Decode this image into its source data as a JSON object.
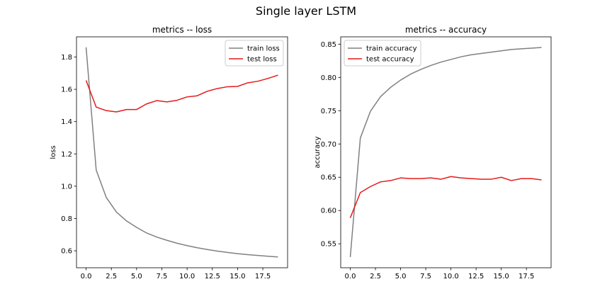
{
  "figure": {
    "title": "Single layer LSTM",
    "colors": {
      "train": "#808080",
      "test": "#e41a1c"
    }
  },
  "chart_data": [
    {
      "type": "line",
      "title": "metrics -- loss",
      "xlabel": "",
      "ylabel": "loss",
      "xlim": [
        -0.95,
        19.95
      ],
      "ylim": [
        0.495,
        1.925
      ],
      "xticks": [
        0.0,
        2.5,
        5.0,
        7.5,
        10.0,
        12.5,
        15.0,
        17.5
      ],
      "xtick_labels": [
        "0.0",
        "2.5",
        "5.0",
        "7.5",
        "10.0",
        "12.5",
        "15.0",
        "17.5"
      ],
      "yticks": [
        0.6,
        0.8,
        1.0,
        1.2,
        1.4,
        1.6,
        1.8
      ],
      "ytick_labels": [
        "0.6",
        "0.8",
        "1.0",
        "1.2",
        "1.4",
        "1.6",
        "1.8"
      ],
      "grid": false,
      "legend": "top-right",
      "x": [
        0,
        1,
        2,
        3,
        4,
        5,
        6,
        7,
        8,
        9,
        10,
        11,
        12,
        13,
        14,
        15,
        16,
        17,
        18,
        19
      ],
      "series": [
        {
          "name": "train loss",
          "color": "#808080",
          "values": [
            1.86,
            1.1,
            0.93,
            0.84,
            0.785,
            0.745,
            0.71,
            0.685,
            0.665,
            0.647,
            0.632,
            0.619,
            0.608,
            0.598,
            0.59,
            0.582,
            0.576,
            0.571,
            0.566,
            0.562
          ]
        },
        {
          "name": "test loss",
          "color": "#e41a1c",
          "values": [
            1.655,
            1.49,
            1.468,
            1.46,
            1.475,
            1.475,
            1.51,
            1.53,
            1.522,
            1.532,
            1.553,
            1.56,
            1.588,
            1.605,
            1.616,
            1.618,
            1.64,
            1.65,
            1.667,
            1.688
          ]
        }
      ]
    },
    {
      "type": "line",
      "title": "metrics -- accuracy",
      "xlabel": "",
      "ylabel": "accuracy",
      "xlim": [
        -0.95,
        19.95
      ],
      "ylim": [
        0.514,
        0.861
      ],
      "xticks": [
        0.0,
        2.5,
        5.0,
        7.5,
        10.0,
        12.5,
        15.0,
        17.5
      ],
      "xtick_labels": [
        "0.0",
        "2.5",
        "5.0",
        "7.5",
        "10.0",
        "12.5",
        "15.0",
        "17.5"
      ],
      "yticks": [
        0.55,
        0.6,
        0.65,
        0.7,
        0.75,
        0.8,
        0.85
      ],
      "ytick_labels": [
        "0.55",
        "0.60",
        "0.65",
        "0.70",
        "0.75",
        "0.80",
        "0.85"
      ],
      "grid": false,
      "legend": "top-left",
      "x": [
        0,
        1,
        2,
        3,
        4,
        5,
        6,
        7,
        8,
        9,
        10,
        11,
        12,
        13,
        14,
        15,
        16,
        17,
        18,
        19
      ],
      "series": [
        {
          "name": "train accuracy",
          "color": "#808080",
          "values": [
            0.53,
            0.709,
            0.749,
            0.771,
            0.785,
            0.796,
            0.805,
            0.812,
            0.818,
            0.823,
            0.827,
            0.831,
            0.834,
            0.836,
            0.838,
            0.84,
            0.842,
            0.843,
            0.844,
            0.845
          ]
        },
        {
          "name": "test accuracy",
          "color": "#e41a1c",
          "values": [
            0.589,
            0.627,
            0.636,
            0.643,
            0.645,
            0.649,
            0.648,
            0.648,
            0.649,
            0.647,
            0.651,
            0.649,
            0.648,
            0.647,
            0.647,
            0.65,
            0.645,
            0.648,
            0.648,
            0.646
          ]
        }
      ]
    }
  ]
}
